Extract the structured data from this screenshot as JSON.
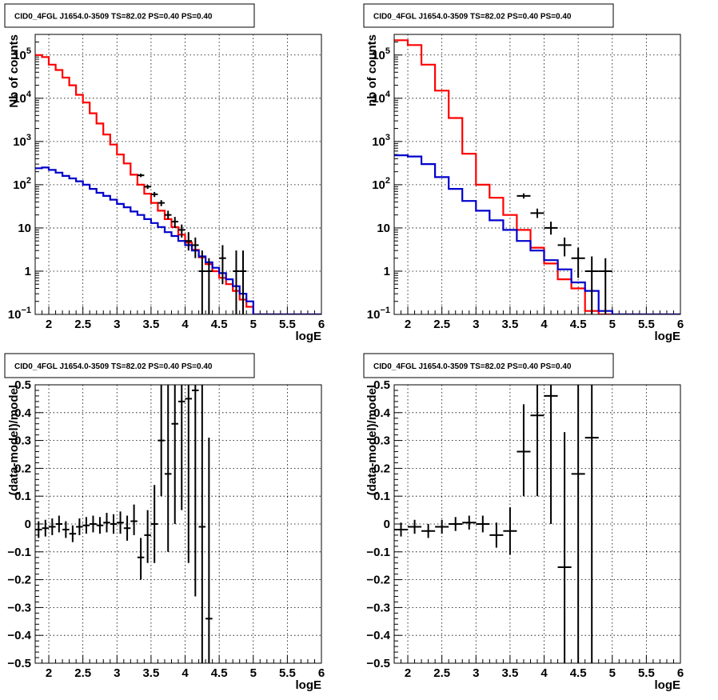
{
  "chart_data": [
    {
      "id": "counts_left",
      "type": "line",
      "title": "CID0_4FGL J1654.0-3509 TS=82.02 PS=0.40 PS=0.40",
      "xlabel": "logE",
      "ylabel": "Nb of counts",
      "xlim": [
        1.8,
        6.0
      ],
      "ylim": [
        0.1,
        300000
      ],
      "yscale": "log",
      "grid": true,
      "xticks": [
        "2",
        "2.5",
        "3",
        "3.5",
        "4",
        "4.5",
        "5",
        "5.5",
        "6"
      ],
      "yticks": [
        {
          "v": 0.1,
          "m": "10",
          "e": "−1"
        },
        {
          "v": 1,
          "m": "1",
          "e": ""
        },
        {
          "v": 10,
          "m": "10",
          "e": ""
        },
        {
          "v": 100,
          "m": "10",
          "e": "2"
        },
        {
          "v": 1000,
          "m": "10",
          "e": "3"
        },
        {
          "v": 10000,
          "m": "10",
          "e": "4"
        },
        {
          "v": 100000,
          "m": "10",
          "e": "5"
        }
      ],
      "bin_edges": [
        1.8,
        1.9,
        2.0,
        2.1,
        2.2,
        2.3,
        2.4,
        2.5,
        2.6,
        2.7,
        2.8,
        2.9,
        3.0,
        3.1,
        3.2,
        3.3,
        3.4,
        3.5,
        3.6,
        3.7,
        3.8,
        3.9,
        4.0,
        4.1,
        4.2,
        4.3,
        4.4,
        4.5,
        4.6,
        4.7,
        4.8,
        4.9,
        5.0,
        5.1,
        5.2,
        5.3,
        5.4,
        5.5,
        5.6,
        5.7,
        5.8,
        5.9,
        6.0
      ],
      "series": [
        {
          "color": "#ff0000",
          "hist": [
            100000,
            90000,
            60000,
            45000,
            30000,
            20000,
            12000,
            8000,
            4500,
            2600,
            1450,
            850,
            500,
            310,
            170,
            100,
            62,
            38,
            25,
            16,
            10.5,
            7,
            4.6,
            3.1,
            2.1,
            1.45,
            1.0,
            0.7,
            0.5,
            0.35,
            0.22,
            0.15,
            0.1,
            0.1,
            0.1,
            0.1,
            0.1,
            0.1,
            0.1,
            0.1,
            0.1,
            0.1
          ]
        },
        {
          "color": "#0000cc",
          "hist": [
            240,
            250,
            220,
            190,
            160,
            140,
            120,
            100,
            80,
            65,
            55,
            45,
            36,
            30,
            24,
            20,
            16,
            13,
            10.5,
            8,
            6.5,
            5,
            4,
            3,
            2.2,
            1.6,
            1.2,
            0.9,
            0.65,
            0.45,
            0.3,
            0.2,
            0.1,
            0.1,
            0.1,
            0.1,
            0.1,
            0.1,
            0.1,
            0.1,
            0.1,
            0.1
          ]
        }
      ],
      "points": [
        {
          "x": 3.35,
          "y": 165,
          "xerr": 0.05,
          "ylo": 150,
          "yhi": 180
        },
        {
          "x": 3.45,
          "y": 90,
          "xerr": 0.05,
          "ylo": 80,
          "yhi": 100
        },
        {
          "x": 3.55,
          "y": 60,
          "xerr": 0.05,
          "ylo": 52,
          "yhi": 68
        },
        {
          "x": 3.65,
          "y": 38,
          "xerr": 0.05,
          "ylo": 32,
          "yhi": 44
        },
        {
          "x": 3.75,
          "y": 20,
          "xerr": 0.05,
          "ylo": 16,
          "yhi": 25
        },
        {
          "x": 3.85,
          "y": 14,
          "xerr": 0.05,
          "ylo": 10,
          "yhi": 18
        },
        {
          "x": 3.95,
          "y": 9,
          "xerr": 0.05,
          "ylo": 6,
          "yhi": 12
        },
        {
          "x": 4.05,
          "y": 5,
          "xerr": 0.05,
          "ylo": 3,
          "yhi": 8
        },
        {
          "x": 4.15,
          "y": 4,
          "xerr": 0.05,
          "ylo": 2,
          "yhi": 6
        },
        {
          "x": 4.25,
          "y": 1,
          "xerr": 0.05,
          "ylo": 0.1,
          "yhi": 3
        },
        {
          "x": 4.35,
          "y": 1,
          "xerr": 0.05,
          "ylo": 0.1,
          "yhi": 2
        },
        {
          "x": 4.55,
          "y": 2,
          "xerr": 0.05,
          "ylo": 0.5,
          "yhi": 4
        },
        {
          "x": 4.75,
          "y": 1,
          "xerr": 0.05,
          "ylo": 0.1,
          "yhi": 3
        },
        {
          "x": 4.85,
          "y": 1,
          "xerr": 0.05,
          "ylo": 0.1,
          "yhi": 3
        }
      ]
    },
    {
      "id": "counts_right",
      "type": "line",
      "title": "CID0_4FGL J1654.0-3509 TS=82.02 PS=0.40 PS=0.40",
      "xlabel": "logE",
      "ylabel": "nb of counts",
      "xlim": [
        1.8,
        6.0
      ],
      "ylim": [
        0.1,
        300000
      ],
      "yscale": "log",
      "grid": true,
      "xticks": [
        "2",
        "2.5",
        "3",
        "3.5",
        "4",
        "4.5",
        "5",
        "5.5",
        "6"
      ],
      "yticks": [
        {
          "v": 0.1,
          "m": "10",
          "e": "−1"
        },
        {
          "v": 1,
          "m": "1",
          "e": ""
        },
        {
          "v": 10,
          "m": "10",
          "e": ""
        },
        {
          "v": 100,
          "m": "10",
          "e": "2"
        },
        {
          "v": 1000,
          "m": "10",
          "e": "3"
        },
        {
          "v": 10000,
          "m": "10",
          "e": "4"
        },
        {
          "v": 100000,
          "m": "10",
          "e": "5"
        }
      ],
      "bin_edges": [
        1.8,
        2.0,
        2.2,
        2.4,
        2.6,
        2.8,
        3.0,
        3.2,
        3.4,
        3.6,
        3.8,
        4.0,
        4.2,
        4.4,
        4.6,
        4.8,
        5.0,
        5.2,
        5.4,
        5.6,
        5.8,
        6.0
      ],
      "series": [
        {
          "color": "#ff0000",
          "hist": [
            220000,
            170000,
            60000,
            15000,
            3500,
            520,
            100,
            50,
            20,
            9,
            3.5,
            1.5,
            0.65,
            0.4,
            0.12,
            0.1,
            0.1,
            0.1,
            0.1,
            0.1,
            0.1
          ]
        },
        {
          "color": "#0000cc",
          "hist": [
            480,
            450,
            300,
            150,
            80,
            42,
            25,
            15,
            9,
            5,
            3,
            1.8,
            1.1,
            0.55,
            0.35,
            0.12,
            0.1,
            0.1,
            0.1,
            0.1,
            0.1
          ]
        }
      ],
      "points": [
        {
          "x": 3.7,
          "y": 55,
          "xerr": 0.1,
          "ylo": 48,
          "yhi": 63
        },
        {
          "x": 3.9,
          "y": 22,
          "xerr": 0.1,
          "ylo": 17,
          "yhi": 28
        },
        {
          "x": 4.1,
          "y": 10,
          "xerr": 0.1,
          "ylo": 7,
          "yhi": 14
        },
        {
          "x": 4.3,
          "y": 4,
          "xerr": 0.1,
          "ylo": 2.2,
          "yhi": 6
        },
        {
          "x": 4.5,
          "y": 2,
          "xerr": 0.1,
          "ylo": 0.7,
          "yhi": 3.5
        },
        {
          "x": 4.7,
          "y": 1,
          "xerr": 0.1,
          "ylo": 0.1,
          "yhi": 2.2
        },
        {
          "x": 4.9,
          "y": 1,
          "xerr": 0.1,
          "ylo": 0.1,
          "yhi": 2
        }
      ]
    },
    {
      "id": "residual_left",
      "type": "scatter",
      "title": "CID0_4FGL J1654.0-3509 TS=82.02 PS=0.40 PS=0.40",
      "xlabel": "logE",
      "ylabel": "(data-model)/model",
      "xlim": [
        1.8,
        6.0
      ],
      "ylim": [
        -0.5,
        0.5
      ],
      "yscale": "linear",
      "grid": true,
      "xticks": [
        "2",
        "2.5",
        "3",
        "3.5",
        "4",
        "4.5",
        "5",
        "5.5",
        "6"
      ],
      "yticks": [
        {
          "v": -0.5,
          "m": "−0.5",
          "e": ""
        },
        {
          "v": -0.4,
          "m": "−0.4",
          "e": ""
        },
        {
          "v": -0.3,
          "m": "−0.3",
          "e": ""
        },
        {
          "v": -0.2,
          "m": "−0.2",
          "e": ""
        },
        {
          "v": -0.1,
          "m": "−0.1",
          "e": ""
        },
        {
          "v": 0,
          "m": "0",
          "e": ""
        },
        {
          "v": 0.1,
          "m": "0.1",
          "e": ""
        },
        {
          "v": 0.2,
          "m": "0.2",
          "e": ""
        },
        {
          "v": 0.3,
          "m": "0.3",
          "e": ""
        },
        {
          "v": 0.4,
          "m": "0.4",
          "e": ""
        },
        {
          "v": 0.5,
          "m": "0.5",
          "e": ""
        }
      ],
      "points": [
        {
          "x": 1.85,
          "y": -0.02,
          "xerr": 0.05,
          "ylo": -0.05,
          "yhi": 0.01
        },
        {
          "x": 1.95,
          "y": -0.015,
          "xerr": 0.05,
          "ylo": -0.045,
          "yhi": 0.015
        },
        {
          "x": 2.05,
          "y": -0.01,
          "xerr": 0.05,
          "ylo": -0.04,
          "yhi": 0.02
        },
        {
          "x": 2.15,
          "y": 0.0,
          "xerr": 0.05,
          "ylo": -0.03,
          "yhi": 0.03
        },
        {
          "x": 2.25,
          "y": -0.02,
          "xerr": 0.05,
          "ylo": -0.05,
          "yhi": 0.01
        },
        {
          "x": 2.35,
          "y": -0.035,
          "xerr": 0.05,
          "ylo": -0.065,
          "yhi": -0.005
        },
        {
          "x": 2.45,
          "y": -0.01,
          "xerr": 0.05,
          "ylo": -0.04,
          "yhi": 0.02
        },
        {
          "x": 2.55,
          "y": -0.005,
          "xerr": 0.05,
          "ylo": -0.035,
          "yhi": 0.025
        },
        {
          "x": 2.65,
          "y": 0.0,
          "xerr": 0.05,
          "ylo": -0.03,
          "yhi": 0.03
        },
        {
          "x": 2.75,
          "y": -0.005,
          "xerr": 0.05,
          "ylo": -0.035,
          "yhi": 0.025
        },
        {
          "x": 2.85,
          "y": 0.005,
          "xerr": 0.05,
          "ylo": -0.03,
          "yhi": 0.04
        },
        {
          "x": 2.95,
          "y": 0.0,
          "xerr": 0.05,
          "ylo": -0.035,
          "yhi": 0.035
        },
        {
          "x": 3.05,
          "y": 0.005,
          "xerr": 0.05,
          "ylo": -0.035,
          "yhi": 0.045
        },
        {
          "x": 3.15,
          "y": -0.015,
          "xerr": 0.05,
          "ylo": -0.06,
          "yhi": 0.03
        },
        {
          "x": 3.25,
          "y": 0.01,
          "xerr": 0.05,
          "ylo": -0.04,
          "yhi": 0.07
        },
        {
          "x": 3.35,
          "y": -0.12,
          "xerr": 0.05,
          "ylo": -0.2,
          "yhi": -0.05
        },
        {
          "x": 3.45,
          "y": -0.04,
          "xerr": 0.05,
          "ylo": -0.14,
          "yhi": 0.05
        },
        {
          "x": 3.55,
          "y": 0.0,
          "xerr": 0.05,
          "ylo": -0.14,
          "yhi": 0.14
        },
        {
          "x": 3.65,
          "y": 0.3,
          "xerr": 0.05,
          "ylo": 0.1,
          "yhi": 0.5
        },
        {
          "x": 3.75,
          "y": 0.18,
          "xerr": 0.05,
          "ylo": -0.1,
          "yhi": 0.5
        },
        {
          "x": 3.85,
          "y": 0.36,
          "xerr": 0.05,
          "ylo": 0.0,
          "yhi": 0.5
        },
        {
          "x": 3.95,
          "y": 0.44,
          "xerr": 0.05,
          "ylo": 0.05,
          "yhi": 0.5
        },
        {
          "x": 4.05,
          "y": 0.45,
          "xerr": 0.05,
          "ylo": -0.14,
          "yhi": 0.5
        },
        {
          "x": 4.15,
          "y": 0.48,
          "xerr": 0.05,
          "ylo": -0.26,
          "yhi": 0.5
        },
        {
          "x": 4.25,
          "y": -0.01,
          "xerr": 0.05,
          "ylo": -0.5,
          "yhi": 0.5
        },
        {
          "x": 4.35,
          "y": -0.34,
          "xerr": 0.05,
          "ylo": -0.5,
          "yhi": 0.31
        }
      ]
    },
    {
      "id": "residual_right",
      "type": "scatter",
      "title": "CID0_4FGL J1654.0-3509 TS=82.02 PS=0.40 PS=0.40",
      "xlabel": "logE",
      "ylabel": "(data-model)/model",
      "xlim": [
        1.8,
        6.0
      ],
      "ylim": [
        -0.5,
        0.5
      ],
      "yscale": "linear",
      "grid": true,
      "xticks": [
        "2",
        "2.5",
        "3",
        "3.5",
        "4",
        "4.5",
        "5",
        "5.5",
        "6"
      ],
      "yticks": [
        {
          "v": -0.5,
          "m": "−0.5",
          "e": ""
        },
        {
          "v": -0.4,
          "m": "−0.4",
          "e": ""
        },
        {
          "v": -0.3,
          "m": "−0.3",
          "e": ""
        },
        {
          "v": -0.2,
          "m": "−0.2",
          "e": ""
        },
        {
          "v": -0.1,
          "m": "−0.1",
          "e": ""
        },
        {
          "v": 0,
          "m": "0",
          "e": ""
        },
        {
          "v": 0.1,
          "m": "0.1",
          "e": ""
        },
        {
          "v": 0.2,
          "m": "0.2",
          "e": ""
        },
        {
          "v": 0.3,
          "m": "0.3",
          "e": ""
        },
        {
          "v": 0.4,
          "m": "0.4",
          "e": ""
        },
        {
          "v": 0.5,
          "m": "0.5",
          "e": ""
        }
      ],
      "points": [
        {
          "x": 1.9,
          "y": -0.02,
          "xerr": 0.1,
          "ylo": -0.045,
          "yhi": 0.005
        },
        {
          "x": 2.1,
          "y": -0.01,
          "xerr": 0.1,
          "ylo": -0.035,
          "yhi": 0.015
        },
        {
          "x": 2.3,
          "y": -0.025,
          "xerr": 0.1,
          "ylo": -0.05,
          "yhi": 0.0
        },
        {
          "x": 2.5,
          "y": -0.01,
          "xerr": 0.1,
          "ylo": -0.035,
          "yhi": 0.015
        },
        {
          "x": 2.7,
          "y": 0.0,
          "xerr": 0.1,
          "ylo": -0.025,
          "yhi": 0.025
        },
        {
          "x": 2.9,
          "y": 0.005,
          "xerr": 0.1,
          "ylo": -0.02,
          "yhi": 0.03
        },
        {
          "x": 3.1,
          "y": 0.0,
          "xerr": 0.1,
          "ylo": -0.03,
          "yhi": 0.03
        },
        {
          "x": 3.3,
          "y": -0.04,
          "xerr": 0.1,
          "ylo": -0.085,
          "yhi": 0.005
        },
        {
          "x": 3.5,
          "y": -0.025,
          "xerr": 0.1,
          "ylo": -0.11,
          "yhi": 0.06
        },
        {
          "x": 3.7,
          "y": 0.26,
          "xerr": 0.1,
          "ylo": 0.1,
          "yhi": 0.43
        },
        {
          "x": 3.9,
          "y": 0.39,
          "xerr": 0.1,
          "ylo": 0.1,
          "yhi": 0.5
        },
        {
          "x": 4.1,
          "y": 0.46,
          "xerr": 0.1,
          "ylo": 0.0,
          "yhi": 0.5
        },
        {
          "x": 4.3,
          "y": -0.155,
          "xerr": 0.1,
          "ylo": -0.5,
          "yhi": 0.33
        },
        {
          "x": 4.5,
          "y": 0.18,
          "xerr": 0.1,
          "ylo": -0.5,
          "yhi": 0.5
        },
        {
          "x": 4.7,
          "y": 0.31,
          "xerr": 0.1,
          "ylo": -0.5,
          "yhi": 0.5
        }
      ]
    }
  ]
}
